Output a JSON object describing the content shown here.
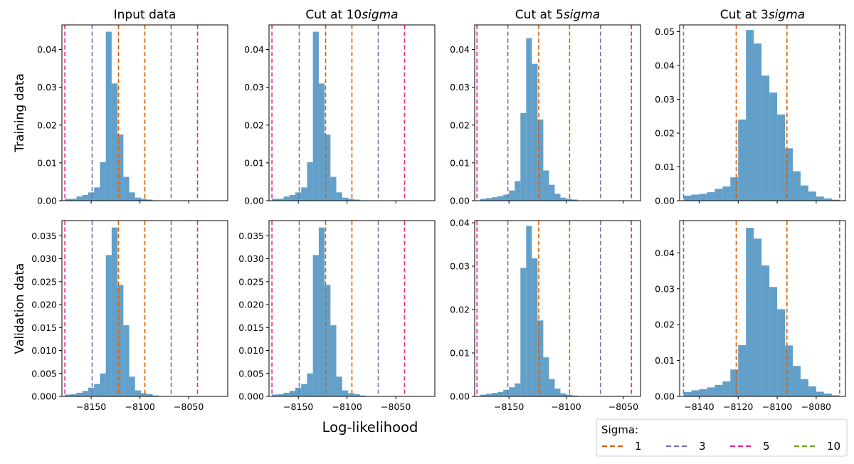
{
  "chart_data": {
    "type": "histogram-grid",
    "xlabel": "Log-likelihood",
    "column_titles": [
      {
        "text": "Input data"
      },
      {
        "text": "Cut at 10",
        "italic": "sigma"
      },
      {
        "text": "Cut at 5",
        "italic": "sigma"
      },
      {
        "text": "Cut at 3",
        "italic": "sigma"
      }
    ],
    "row_labels": [
      "Training data",
      "Validation data"
    ],
    "colors": {
      "bars": "#1f77b4",
      "sigma_1": "#d95f02",
      "sigma_3": "#7570b3",
      "sigma_5": "#e7298a",
      "sigma_10": "#66a61e"
    },
    "legend": {
      "title": "Sigma:",
      "position": "bottom-right",
      "entries": [
        {
          "label": "1",
          "color_key": "sigma_1"
        },
        {
          "label": "3",
          "color_key": "sigma_3"
        },
        {
          "label": "5",
          "color_key": "sigma_5"
        },
        {
          "label": "10",
          "color_key": "sigma_10"
        }
      ]
    },
    "panels": [
      {
        "row": 0,
        "col": 0,
        "xlim": [
          -8180,
          -8010
        ],
        "ylim": [
          0,
          0.0465
        ],
        "xticks": [
          -8150,
          -8100,
          -8050
        ],
        "yticks": [
          0,
          0.01,
          0.02,
          0.03,
          0.04
        ],
        "ytick_labels": [
          "0.00",
          "0.01",
          "0.02",
          "0.03",
          "0.04"
        ],
        "show_xtick_labels": false,
        "bins": {
          "start": -8177,
          "width": 6.0,
          "heights": [
            0.0005,
            0.0005,
            0.0011,
            0.0015,
            0.0022,
            0.0035,
            0.0102,
            0.0447,
            0.031,
            0.0175,
            0.0063,
            0.0022,
            0.0008,
            0.0005,
            0.0003,
            0.0001
          ]
        },
        "vlines": [
          {
            "sigma": "sigma_5",
            "x": -8177
          },
          {
            "sigma": "sigma_3",
            "x": -8149
          },
          {
            "sigma": "sigma_1",
            "x": -8122
          },
          {
            "sigma": "sigma_1",
            "x": -8095
          },
          {
            "sigma": "sigma_3",
            "x": -8068
          },
          {
            "sigma": "sigma_5",
            "x": -8041
          }
        ]
      },
      {
        "row": 0,
        "col": 1,
        "xlim": [
          -8180,
          -8010
        ],
        "ylim": [
          0,
          0.0465
        ],
        "xticks": [
          -8150,
          -8100,
          -8050
        ],
        "yticks": [
          0,
          0.01,
          0.02,
          0.03,
          0.04
        ],
        "ytick_labels": [
          "0.00",
          "0.01",
          "0.02",
          "0.03",
          "0.04"
        ],
        "show_xtick_labels": false,
        "bins": {
          "start": -8177,
          "width": 6.0,
          "heights": [
            0.0005,
            0.0005,
            0.0011,
            0.0015,
            0.0022,
            0.0035,
            0.0102,
            0.0447,
            0.031,
            0.0175,
            0.0063,
            0.0022,
            0.0008,
            0.0005,
            0.0003,
            0.0001
          ]
        },
        "vlines": [
          {
            "sigma": "sigma_5",
            "x": -8177
          },
          {
            "sigma": "sigma_3",
            "x": -8149
          },
          {
            "sigma": "sigma_1",
            "x": -8122
          },
          {
            "sigma": "sigma_1",
            "x": -8095
          },
          {
            "sigma": "sigma_3",
            "x": -8068
          },
          {
            "sigma": "sigma_5",
            "x": -8041
          }
        ]
      },
      {
        "row": 0,
        "col": 2,
        "xlim": [
          -8180,
          -8035
        ],
        "ylim": [
          0,
          0.0465
        ],
        "xticks": [
          -8150,
          -8100,
          -8050
        ],
        "yticks": [
          0,
          0.01,
          0.02,
          0.03,
          0.04
        ],
        "ytick_labels": [
          "0.00",
          "0.01",
          "0.02",
          "0.03",
          "0.04"
        ],
        "show_xtick_labels": false,
        "bins": {
          "start": -8175,
          "width": 5.0,
          "heights": [
            0.0005,
            0.0007,
            0.0009,
            0.0012,
            0.0016,
            0.0027,
            0.0052,
            0.0232,
            0.043,
            0.0362,
            0.0215,
            0.008,
            0.0042,
            0.0018,
            0.0008,
            0.0005,
            0.0003
          ]
        },
        "vlines": [
          {
            "sigma": "sigma_5",
            "x": -8178
          },
          {
            "sigma": "sigma_3",
            "x": -8151
          },
          {
            "sigma": "sigma_1",
            "x": -8124
          },
          {
            "sigma": "sigma_1",
            "x": -8097
          },
          {
            "sigma": "sigma_3",
            "x": -8070
          },
          {
            "sigma": "sigma_5",
            "x": -8043
          }
        ]
      },
      {
        "row": 0,
        "col": 3,
        "xlim": [
          -8150,
          -8065
        ],
        "ylim": [
          0,
          0.052
        ],
        "xticks": [
          -8140,
          -8120,
          -8100,
          -8080
        ],
        "yticks": [
          0,
          0.01,
          0.02,
          0.03,
          0.04,
          0.05
        ],
        "ytick_labels": [
          "0.00",
          "0.01",
          "0.02",
          "0.03",
          "0.04",
          "0.05"
        ],
        "show_xtick_labels": false,
        "bins": {
          "start": -8148,
          "width": 4.0,
          "heights": [
            0.0015,
            0.0018,
            0.002,
            0.0025,
            0.0035,
            0.0042,
            0.0069,
            0.024,
            0.0505,
            0.0465,
            0.037,
            0.032,
            0.0255,
            0.0155,
            0.0087,
            0.0045,
            0.0027,
            0.0012,
            0.0007,
            0.0003
          ]
        },
        "vlines": [
          {
            "sigma": "sigma_3",
            "x": -8148
          },
          {
            "sigma": "sigma_1",
            "x": -8121
          },
          {
            "sigma": "sigma_1",
            "x": -8095
          },
          {
            "sigma": "sigma_3",
            "x": -8068
          }
        ]
      },
      {
        "row": 1,
        "col": 0,
        "xlim": [
          -8180,
          -8010
        ],
        "ylim": [
          0,
          0.0383
        ],
        "xticks": [
          -8150,
          -8100,
          -8050
        ],
        "yticks": [
          0,
          0.005,
          0.01,
          0.015,
          0.02,
          0.025,
          0.03,
          0.035
        ],
        "ytick_labels": [
          "0.000",
          "0.005",
          "0.010",
          "0.015",
          "0.020",
          "0.025",
          "0.030",
          "0.035"
        ],
        "show_xtick_labels": true,
        "xtick_labels": [
          "−8150",
          "−8100",
          "−8050"
        ],
        "bins": {
          "start": -8177,
          "width": 6.0,
          "heights": [
            0.0004,
            0.0005,
            0.0008,
            0.0012,
            0.0019,
            0.0027,
            0.005,
            0.0308,
            0.0368,
            0.0243,
            0.0155,
            0.0043,
            0.0013,
            0.0007,
            0.0005,
            0.0002
          ]
        },
        "vlines": [
          {
            "sigma": "sigma_5",
            "x": -8177
          },
          {
            "sigma": "sigma_3",
            "x": -8149
          },
          {
            "sigma": "sigma_1",
            "x": -8122
          },
          {
            "sigma": "sigma_1",
            "x": -8095
          },
          {
            "sigma": "sigma_3",
            "x": -8068
          },
          {
            "sigma": "sigma_5",
            "x": -8041
          }
        ]
      },
      {
        "row": 1,
        "col": 1,
        "xlim": [
          -8180,
          -8010
        ],
        "ylim": [
          0,
          0.0383
        ],
        "xticks": [
          -8150,
          -8100,
          -8050
        ],
        "yticks": [
          0,
          0.005,
          0.01,
          0.015,
          0.02,
          0.025,
          0.03,
          0.035
        ],
        "ytick_labels": [
          "0.000",
          "0.005",
          "0.010",
          "0.015",
          "0.020",
          "0.025",
          "0.030",
          "0.035"
        ],
        "show_xtick_labels": true,
        "xtick_labels": [
          "−8150",
          "−8100",
          "−8050"
        ],
        "bins": {
          "start": -8177,
          "width": 6.0,
          "heights": [
            0.0004,
            0.0005,
            0.0008,
            0.0012,
            0.0019,
            0.0027,
            0.005,
            0.0308,
            0.0368,
            0.0243,
            0.0155,
            0.0043,
            0.0013,
            0.0007,
            0.0005,
            0.0002
          ]
        },
        "vlines": [
          {
            "sigma": "sigma_5",
            "x": -8177
          },
          {
            "sigma": "sigma_3",
            "x": -8149
          },
          {
            "sigma": "sigma_1",
            "x": -8122
          },
          {
            "sigma": "sigma_1",
            "x": -8095
          },
          {
            "sigma": "sigma_3",
            "x": -8068
          },
          {
            "sigma": "sigma_5",
            "x": -8041
          }
        ]
      },
      {
        "row": 1,
        "col": 2,
        "xlim": [
          -8180,
          -8035
        ],
        "ylim": [
          0,
          0.0405
        ],
        "xticks": [
          -8150,
          -8100,
          -8050
        ],
        "yticks": [
          0,
          0.01,
          0.02,
          0.03,
          0.04
        ],
        "ytick_labels": [
          "0.00",
          "0.01",
          "0.02",
          "0.03",
          "0.04"
        ],
        "show_xtick_labels": true,
        "xtick_labels": [
          "−8150",
          "−8100",
          "−8050"
        ],
        "bins": {
          "start": -8175,
          "width": 5.0,
          "heights": [
            0.0004,
            0.0006,
            0.0008,
            0.001,
            0.0015,
            0.0021,
            0.003,
            0.0296,
            0.0393,
            0.0318,
            0.0175,
            0.009,
            0.004,
            0.0018,
            0.0007,
            0.0004,
            0.0002
          ]
        },
        "vlines": [
          {
            "sigma": "sigma_5",
            "x": -8178
          },
          {
            "sigma": "sigma_3",
            "x": -8151
          },
          {
            "sigma": "sigma_1",
            "x": -8124
          },
          {
            "sigma": "sigma_1",
            "x": -8097
          },
          {
            "sigma": "sigma_3",
            "x": -8070
          },
          {
            "sigma": "sigma_5",
            "x": -8043
          }
        ]
      },
      {
        "row": 1,
        "col": 3,
        "xlim": [
          -8150,
          -8065
        ],
        "ylim": [
          0,
          0.049
        ],
        "xticks": [
          -8140,
          -8120,
          -8100,
          -8080
        ],
        "yticks": [
          0,
          0.01,
          0.02,
          0.03,
          0.04
        ],
        "ytick_labels": [
          "0.00",
          "0.01",
          "0.02",
          "0.03",
          "0.04"
        ],
        "show_xtick_labels": true,
        "xtick_labels": [
          "−8140",
          "−8120",
          "−8100",
          "−8080"
        ],
        "bins": {
          "start": -8148,
          "width": 4.0,
          "heights": [
            0.0012,
            0.0017,
            0.002,
            0.0025,
            0.0032,
            0.0042,
            0.0075,
            0.0143,
            0.047,
            0.044,
            0.0365,
            0.0305,
            0.0243,
            0.0142,
            0.0085,
            0.0048,
            0.0028,
            0.0013,
            0.0008,
            0.0003
          ]
        },
        "vlines": [
          {
            "sigma": "sigma_3",
            "x": -8148
          },
          {
            "sigma": "sigma_1",
            "x": -8121
          },
          {
            "sigma": "sigma_1",
            "x": -8095
          },
          {
            "sigma": "sigma_3",
            "x": -8068
          }
        ]
      }
    ]
  }
}
